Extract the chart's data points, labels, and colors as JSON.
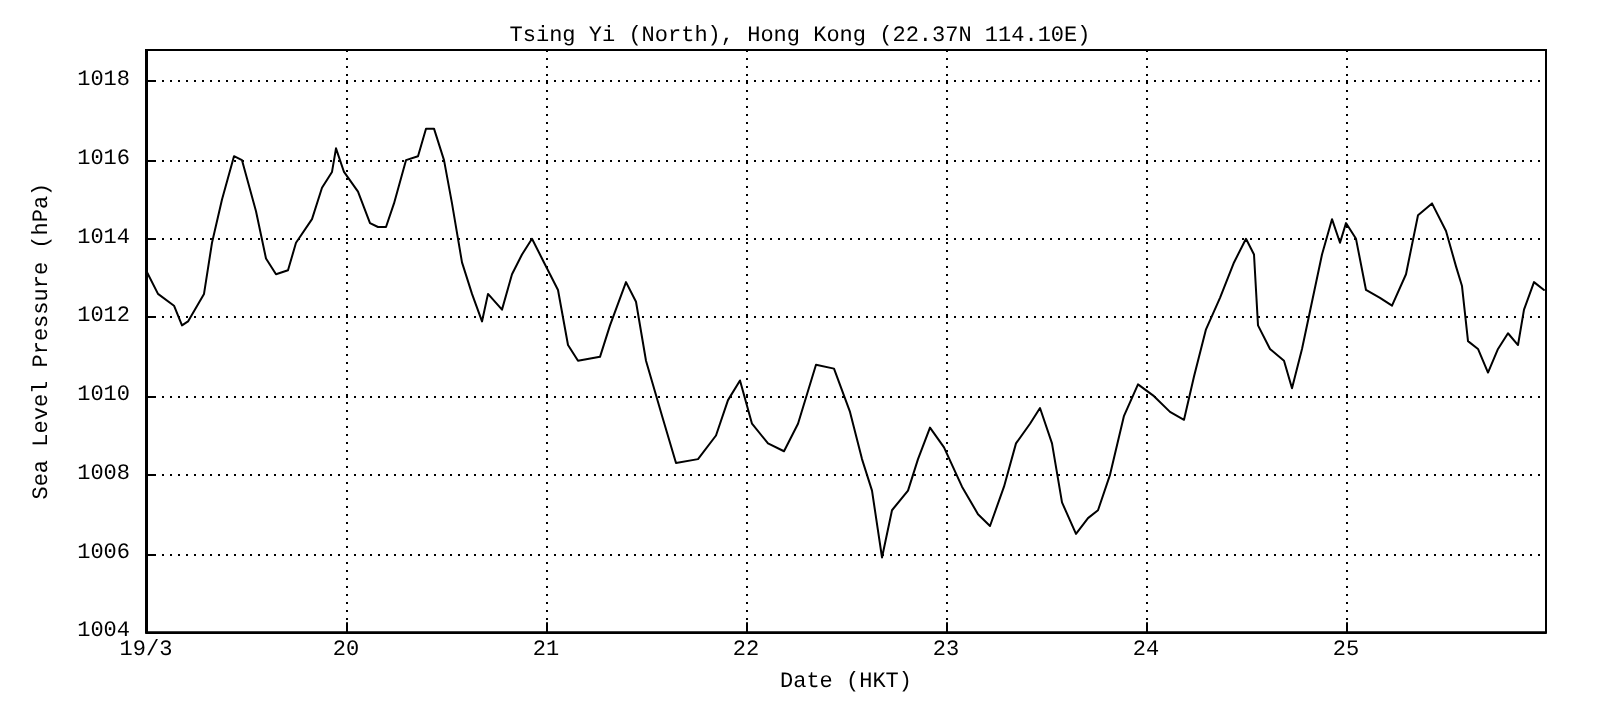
{
  "chart_data": {
    "type": "line",
    "title": "Tsing Yi (North), Hong Kong (22.37N 114.10E)",
    "xlabel": "Date (HKT)",
    "ylabel": "Sea Level Pressure (hPa)",
    "xlim": [
      19,
      26
    ],
    "xticks": [
      {
        "value": 19,
        "label": "19/3"
      },
      20,
      21,
      22,
      23,
      24,
      25
    ],
    "ylim": [
      1004,
      1018.8
    ],
    "yticks": [
      1004,
      1006,
      1008,
      1010,
      1012,
      1014,
      1016,
      1018
    ],
    "grid": true,
    "marker": "none",
    "line_style": "solid",
    "series": [
      {
        "color": "#000000",
        "x": [
          19.0,
          19.06,
          19.14,
          19.18,
          19.21,
          19.29,
          19.33,
          19.38,
          19.44,
          19.48,
          19.55,
          19.6,
          19.65,
          19.71,
          19.75,
          19.83,
          19.88,
          19.93,
          19.95,
          19.99,
          20.06,
          20.12,
          20.16,
          20.2,
          20.24,
          20.3,
          20.36,
          20.4,
          20.44,
          20.49,
          20.53,
          20.58,
          20.63,
          20.68,
          20.71,
          20.78,
          20.83,
          20.88,
          20.93,
          20.99,
          21.06,
          21.11,
          21.16,
          21.27,
          21.32,
          21.4,
          21.45,
          21.5,
          21.58,
          21.65,
          21.76,
          21.85,
          21.91,
          21.97,
          22.03,
          22.11,
          22.19,
          22.26,
          22.35,
          22.44,
          22.52,
          22.58,
          22.63,
          22.68,
          22.73,
          22.81,
          22.86,
          22.92,
          22.99,
          23.08,
          23.16,
          23.22,
          23.29,
          23.35,
          23.42,
          23.47,
          23.53,
          23.58,
          23.65,
          23.71,
          23.76,
          23.82,
          23.89,
          23.96,
          24.04,
          24.12,
          24.19,
          24.24,
          24.3,
          24.37,
          24.44,
          24.5,
          24.54,
          24.56,
          24.62,
          24.69,
          24.73,
          24.78,
          24.83,
          24.88,
          24.93,
          24.97,
          25.0,
          25.05,
          25.1,
          25.17,
          25.23,
          25.3,
          25.36,
          25.43,
          25.5,
          25.55,
          25.58,
          25.61,
          25.66,
          25.71,
          25.76,
          25.81,
          25.86,
          25.89,
          25.94,
          25.99
        ],
        "values": [
          1013.2,
          1012.6,
          1012.3,
          1011.8,
          1011.9,
          1012.6,
          1013.9,
          1015.0,
          1016.1,
          1016.0,
          1014.7,
          1013.5,
          1013.1,
          1013.2,
          1013.9,
          1014.5,
          1015.3,
          1015.7,
          1016.3,
          1015.7,
          1015.2,
          1014.4,
          1014.3,
          1014.3,
          1014.9,
          1016.0,
          1016.1,
          1016.8,
          1016.8,
          1016.0,
          1014.9,
          1013.4,
          1012.6,
          1011.9,
          1012.6,
          1012.2,
          1013.1,
          1013.6,
          1014.0,
          1013.4,
          1012.7,
          1011.3,
          1010.9,
          1011.0,
          1011.8,
          1012.9,
          1012.4,
          1010.9,
          1009.5,
          1008.3,
          1008.4,
          1009.0,
          1009.9,
          1010.4,
          1009.3,
          1008.8,
          1008.6,
          1009.3,
          1010.8,
          1010.7,
          1009.6,
          1008.4,
          1007.6,
          1005.9,
          1007.1,
          1007.6,
          1008.4,
          1009.2,
          1008.7,
          1007.7,
          1007.0,
          1006.7,
          1007.7,
          1008.8,
          1009.3,
          1009.7,
          1008.8,
          1007.3,
          1006.5,
          1006.9,
          1007.1,
          1008.0,
          1009.5,
          1010.3,
          1010.0,
          1009.6,
          1009.4,
          1010.5,
          1011.7,
          1012.5,
          1013.4,
          1014.0,
          1013.6,
          1011.8,
          1011.2,
          1010.9,
          1010.2,
          1011.2,
          1012.4,
          1013.6,
          1014.5,
          1013.9,
          1014.4,
          1014.0,
          1012.7,
          1012.5,
          1012.3,
          1013.1,
          1014.6,
          1014.9,
          1014.2,
          1013.3,
          1012.8,
          1011.4,
          1011.2,
          1010.6,
          1011.2,
          1011.6,
          1011.3,
          1012.2,
          1012.9,
          1012.7
        ]
      }
    ]
  }
}
